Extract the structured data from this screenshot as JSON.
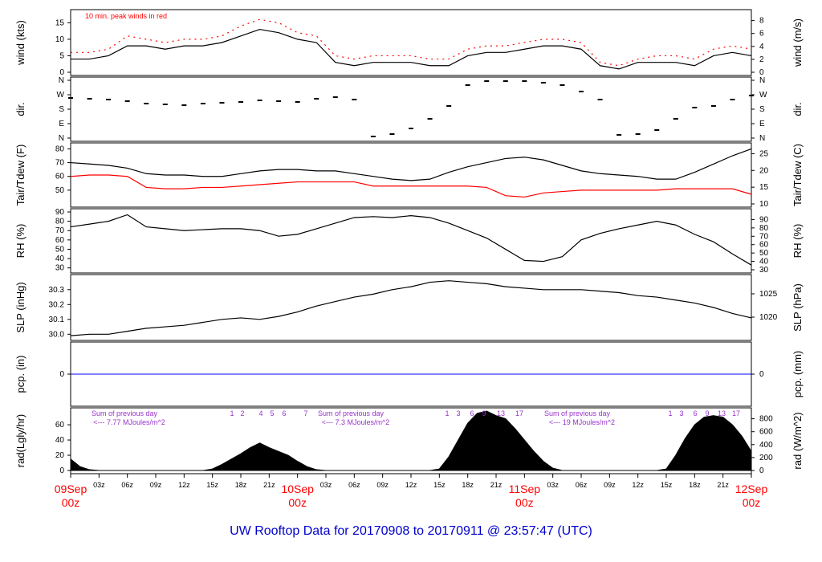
{
  "title": "UW Rooftop Data for 20170908  to  20170911 @ 23:57:47  (UTC)",
  "colors": {
    "title": "#0000cc",
    "peak": "#ff0000",
    "dew": "#ff0000",
    "pcp": "#0000ff",
    "note": "#9933cc",
    "date": "#ff0000",
    "ink": "#000000"
  },
  "chart_data": [
    {
      "type": "line",
      "id": "wind",
      "ylabel_left": "wind (kts)",
      "ylabel_right": "wind (m/s)",
      "annotation": "10 min. peak winds in red",
      "ylim": [
        0,
        18
      ],
      "yticks_left": [
        "0",
        "5",
        "10",
        "15"
      ],
      "yticks_right": [
        "0",
        "2",
        "4",
        "6",
        "8"
      ],
      "x_hours": [
        0,
        2,
        4,
        6,
        8,
        10,
        12,
        14,
        16,
        18,
        20,
        22,
        24,
        26,
        28,
        30,
        32,
        34,
        36,
        38,
        40,
        42,
        44,
        46,
        48,
        50,
        52,
        54,
        56,
        58,
        60,
        62,
        64,
        66,
        68,
        70,
        72
      ],
      "series": [
        {
          "values": [
            4,
            4,
            5,
            8,
            8,
            7,
            8,
            8,
            9,
            11,
            13,
            12,
            10,
            9,
            3,
            2,
            3,
            3,
            3,
            2,
            2,
            5,
            6,
            6,
            7,
            8,
            8,
            7,
            2,
            1,
            3,
            3,
            3,
            2,
            5,
            6,
            5
          ]
        },
        {
          "values": [
            6,
            6,
            7,
            11,
            10,
            9,
            10,
            10,
            11,
            14,
            16,
            15,
            12,
            11,
            5,
            4,
            5,
            5,
            5,
            4,
            4,
            7,
            8,
            8,
            9,
            10,
            10,
            9,
            3,
            2,
            4,
            5,
            5,
            4,
            7,
            8,
            7
          ]
        }
      ]
    },
    {
      "type": "scatter",
      "id": "dir",
      "ylabel_left": "dir.",
      "ylabel_right": "dir.",
      "yticks_left": [
        "N",
        "W",
        "S",
        "E",
        "N"
      ],
      "yticks_right": [
        "N",
        "W",
        "S",
        "E",
        "N"
      ],
      "ylim": [
        0,
        360
      ],
      "x_hours": [
        0,
        2,
        4,
        6,
        8,
        10,
        12,
        14,
        16,
        18,
        20,
        22,
        24,
        26,
        28,
        30,
        32,
        34,
        36,
        38,
        40,
        42,
        44,
        46,
        48,
        50,
        52,
        54,
        56,
        58,
        60,
        62,
        64,
        66,
        68,
        70,
        72
      ],
      "values": [
        250,
        245,
        240,
        230,
        215,
        210,
        205,
        215,
        220,
        225,
        235,
        230,
        225,
        245,
        255,
        240,
        10,
        25,
        60,
        120,
        200,
        330,
        355,
        355,
        355,
        345,
        330,
        290,
        240,
        20,
        25,
        50,
        120,
        190,
        200,
        240,
        265
      ]
    },
    {
      "type": "line",
      "id": "temp",
      "ylabel_left": "Tair/Tdew (F)",
      "ylabel_right": "Tair/Tdew (C)",
      "ylim": [
        40,
        82
      ],
      "yticks_left": [
        "50",
        "60",
        "70",
        "80"
      ],
      "yticks_right": [
        "10",
        "15",
        "20",
        "25"
      ],
      "x_hours": [
        0,
        2,
        4,
        6,
        8,
        10,
        12,
        14,
        16,
        18,
        20,
        22,
        24,
        26,
        28,
        30,
        32,
        34,
        36,
        38,
        40,
        42,
        44,
        46,
        48,
        50,
        52,
        54,
        56,
        58,
        60,
        62,
        64,
        66,
        68,
        70,
        72
      ],
      "series": [
        {
          "name": "Tair",
          "values": [
            70,
            69,
            68,
            66,
            62,
            61,
            61,
            60,
            60,
            62,
            64,
            65,
            65,
            64,
            64,
            62,
            60,
            58,
            57,
            58,
            63,
            67,
            70,
            73,
            74,
            72,
            68,
            64,
            62,
            61,
            60,
            58,
            58,
            63,
            69,
            75,
            80
          ]
        },
        {
          "name": "Tdew",
          "values": [
            60,
            61,
            61,
            60,
            52,
            51,
            51,
            52,
            52,
            53,
            54,
            55,
            56,
            56,
            56,
            56,
            53,
            53,
            53,
            53,
            53,
            53,
            52,
            46,
            45,
            48,
            49,
            50,
            50,
            50,
            50,
            50,
            51,
            51,
            51,
            51,
            47
          ]
        }
      ]
    },
    {
      "type": "line",
      "id": "rh",
      "ylabel_left": "RH (%)",
      "ylabel_right": "RH (%)",
      "ylim": [
        28,
        90
      ],
      "yticks_left": [
        "30",
        "40",
        "50",
        "60",
        "70",
        "80",
        "90"
      ],
      "yticks_right": [
        "30",
        "40",
        "50",
        "60",
        "70",
        "80",
        "90"
      ],
      "x_hours": [
        0,
        2,
        4,
        6,
        8,
        10,
        12,
        14,
        16,
        18,
        20,
        22,
        24,
        26,
        28,
        30,
        32,
        34,
        36,
        38,
        40,
        42,
        44,
        46,
        48,
        50,
        52,
        54,
        56,
        58,
        60,
        62,
        64,
        66,
        68,
        70,
        72
      ],
      "values": [
        74,
        77,
        80,
        87,
        74,
        72,
        70,
        71,
        72,
        72,
        70,
        64,
        66,
        72,
        78,
        84,
        85,
        84,
        86,
        84,
        78,
        70,
        62,
        50,
        38,
        37,
        42,
        60,
        67,
        72,
        76,
        80,
        76,
        66,
        58,
        45,
        33
      ]
    },
    {
      "type": "line",
      "id": "slp",
      "ylabel_left": "SLP (inHg)",
      "ylabel_right": "SLP (hPa)",
      "ylim": [
        29.98,
        30.38
      ],
      "yticks_left": [
        "30.0",
        "30.1",
        "30.2",
        "30.3"
      ],
      "yticks_right": [
        "1020",
        "1025"
      ],
      "x_hours": [
        0,
        2,
        4,
        6,
        8,
        10,
        12,
        14,
        16,
        18,
        20,
        22,
        24,
        26,
        28,
        30,
        32,
        34,
        36,
        38,
        40,
        42,
        44,
        46,
        48,
        50,
        52,
        54,
        56,
        58,
        60,
        62,
        64,
        66,
        68,
        70,
        72
      ],
      "values": [
        29.99,
        30.0,
        30.0,
        30.02,
        30.04,
        30.05,
        30.06,
        30.08,
        30.1,
        30.11,
        30.1,
        30.12,
        30.15,
        30.19,
        30.22,
        30.25,
        30.27,
        30.3,
        30.32,
        30.35,
        30.36,
        30.35,
        30.34,
        30.32,
        30.31,
        30.3,
        30.3,
        30.3,
        30.29,
        30.28,
        30.26,
        30.25,
        30.23,
        30.21,
        30.18,
        30.14,
        30.11
      ]
    },
    {
      "type": "line",
      "id": "pcp",
      "ylabel_left": "pcp. (in)",
      "ylabel_right": "pcp. (mm)",
      "yticks_left": [
        "0"
      ],
      "yticks_right": [
        "0"
      ],
      "values": [
        0,
        0
      ]
    },
    {
      "type": "area",
      "id": "rad",
      "ylabel_left": "rad(Lgly/hr)",
      "ylabel_right": "rad (W/m^2)",
      "ylim": [
        0,
        78
      ],
      "yticks_left": [
        "0",
        "20",
        "40",
        "60"
      ],
      "yticks_right": [
        "0",
        "200",
        "400",
        "600",
        "800"
      ],
      "x_hours": [
        0,
        1,
        2,
        3,
        4,
        5,
        6,
        7,
        8,
        9,
        10,
        11,
        12,
        13,
        14,
        15,
        16,
        17,
        18,
        19,
        20,
        21,
        22,
        23,
        24,
        25,
        26,
        27,
        28,
        29,
        30,
        31,
        32,
        33,
        34,
        35,
        36,
        37,
        38,
        39,
        40,
        41,
        42,
        43,
        44,
        45,
        46,
        47,
        48,
        49,
        50,
        51,
        52,
        53,
        54,
        55,
        56,
        57,
        58,
        59,
        60,
        61,
        62,
        63,
        64,
        65,
        66,
        67,
        68,
        69,
        70,
        71,
        72
      ],
      "values": [
        15,
        5,
        1,
        0,
        0,
        0,
        0,
        0,
        0,
        0,
        0,
        0,
        0,
        0,
        0,
        2,
        8,
        15,
        22,
        30,
        36,
        30,
        25,
        20,
        12,
        5,
        1,
        0,
        0,
        0,
        0,
        0,
        0,
        0,
        0,
        0,
        0,
        0,
        0,
        2,
        18,
        40,
        62,
        75,
        78,
        72,
        68,
        55,
        40,
        25,
        12,
        3,
        0,
        0,
        0,
        0,
        0,
        0,
        0,
        0,
        0,
        0,
        0,
        2,
        20,
        42,
        60,
        70,
        72,
        70,
        60,
        45,
        25
      ],
      "annotations": [
        {
          "text": "Sum of previous day",
          "value": "<--- 7.77 MJoules/m^2"
        },
        {
          "text": "Sum of previous day",
          "value": "<--- 7.3 MJoules/m^2"
        },
        {
          "text": "Sum of previous day",
          "value": "<--- 19 MJoules/m^2"
        }
      ],
      "hour_marks": [
        [
          "1",
          "2",
          "4",
          "5",
          "6",
          "7"
        ],
        [
          "1",
          "3",
          "6",
          "9",
          "13",
          "17"
        ],
        [
          "1",
          "3",
          "6",
          "9",
          "13",
          "17"
        ]
      ]
    }
  ],
  "x_axis": {
    "ticks": [
      "00z",
      "03z",
      "06z",
      "09z",
      "12z",
      "15z",
      "18z",
      "21z",
      "00z",
      "03z",
      "06z",
      "09z",
      "12z",
      "15z",
      "18z",
      "21z",
      "00z",
      "03z",
      "06z",
      "09z",
      "12z",
      "15z",
      "18z",
      "21z",
      "00z"
    ],
    "dates": [
      "09Sep",
      "10Sep",
      "11Sep",
      "12Sep"
    ],
    "date_hours": [
      "00z",
      "00z",
      "00z",
      "00z"
    ]
  }
}
